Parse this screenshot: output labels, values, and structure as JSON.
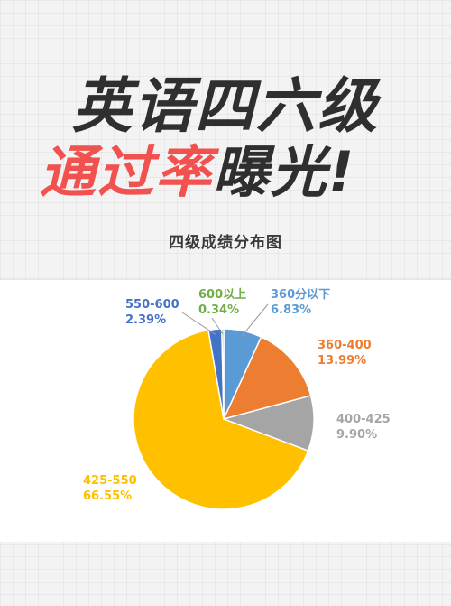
{
  "hero": {
    "line1": "英语四六级",
    "line2_red": "通过率",
    "line2_dark": "曝光!"
  },
  "chart_heading": "四级成绩分布图",
  "chart_data": {
    "type": "pie",
    "categories": [
      "360分以下",
      "360-400",
      "400-425",
      "425-550",
      "550-600",
      "600以上"
    ],
    "values": [
      6.83,
      13.99,
      9.9,
      66.55,
      2.39,
      0.34
    ],
    "value_labels": [
      "6.83%",
      "13.99%",
      "9.90%",
      "66.55%",
      "2.39%",
      "0.34%"
    ],
    "colors": [
      "#5b9bd5",
      "#ed7d31",
      "#a5a5a5",
      "#ffc000",
      "#4472c4",
      "#70ad47"
    ],
    "start_angle_deg": 0,
    "direction": "clockwise",
    "legend": "none"
  }
}
